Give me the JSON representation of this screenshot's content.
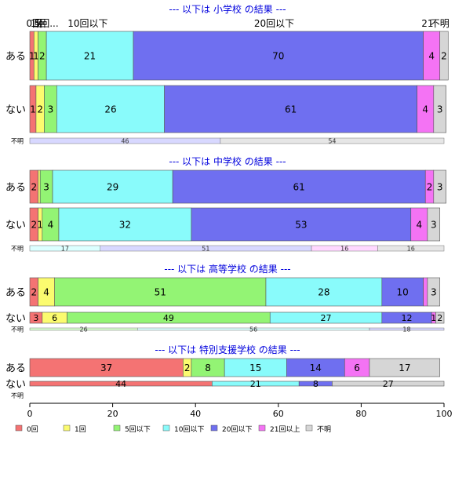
{
  "chart_data": {
    "type": "bar",
    "orientation": "horizontal",
    "stacked": true,
    "xlim": [
      0,
      100
    ],
    "x_ticks": [
      "0",
      "20",
      "40",
      "60",
      "80",
      "100"
    ],
    "categories": [
      "0回",
      "1回",
      "5回以下",
      "10回以下",
      "20回以下",
      "21回以上",
      "不明"
    ],
    "top_labels": [
      {
        "text": "0回",
        "at": 1
      },
      {
        "text": "1回",
        "at": 2
      },
      {
        "text": "5回...",
        "at": 4
      },
      {
        "text": "10回以下",
        "at": 14
      },
      {
        "text": "20回以下",
        "at": 59
      },
      {
        "text": "21",
        "at": 96
      },
      {
        "text": "不明",
        "at": 99
      }
    ],
    "colors": [
      "#f47373",
      "#fbfb6f",
      "#93f474",
      "#89fbfb",
      "#6f6ff0",
      "#f473f4",
      "#d6d6d6"
    ],
    "legend": [
      "0回",
      "1回",
      "5回以下",
      "10回以下",
      "20回以下",
      "21回以上",
      "不明"
    ],
    "legend_position": "bottom",
    "panels": [
      {
        "title": "--- 以下は 小学校 の結果 ---",
        "rows": [
          {
            "label": "ある",
            "values": [
              1,
              1,
              2,
              21,
              70,
              4,
              2
            ],
            "labels": [
              "1",
              "1",
              "2",
              "21",
              "70",
              "4",
              "2"
            ]
          },
          {
            "label": "ない",
            "values": [
              1.5,
              2,
              3,
              26,
              61,
              4,
              3
            ],
            "labels": [
              "1",
              "2",
              "3",
              "26",
              "61",
              "4",
              "3"
            ]
          }
        ],
        "unknown": {
          "label": "不明",
          "values": [
            46,
            54
          ],
          "labels": [
            "46",
            "54"
          ],
          "colors": [
            "#d8d8ff",
            "#e6e6e6"
          ]
        }
      },
      {
        "title": "--- 以下は 中学校 の結果 ---",
        "rows": [
          {
            "label": "ある",
            "values": [
              2,
              0.5,
              3,
              29,
              61,
              2,
              3
            ],
            "labels": [
              "2",
              "",
              "3",
              "29",
              "61",
              "2",
              "3"
            ]
          },
          {
            "label": "ない",
            "values": [
              2,
              1,
              4,
              32,
              53,
              4,
              3
            ],
            "labels": [
              "2",
              "1",
              "4",
              "32",
              "53",
              "4",
              "3"
            ]
          }
        ],
        "unknown": {
          "label": "不明",
          "values": [
            17,
            51,
            16,
            16
          ],
          "labels": [
            "17",
            "51",
            "16",
            "16"
          ],
          "colors": [
            "#dcffff",
            "#d8d8ff",
            "#ffd8ff",
            "#e6e6e6"
          ]
        }
      },
      {
        "title": "--- 以下は 高等学校 の結果 ---",
        "rows": [
          {
            "label": "ある",
            "values": [
              2,
              4,
              51,
              28,
              10,
              1,
              3
            ],
            "labels": [
              "2",
              "4",
              "51",
              "28",
              "10",
              "",
              "3"
            ]
          },
          {
            "label": "ない",
            "values": [
              3,
              6,
              49,
              27,
              12,
              1,
              2
            ],
            "labels": [
              "3",
              "6",
              "49",
              "27",
              "12",
              "1",
              "2"
            ]
          }
        ],
        "unknown": {
          "label": "不明",
          "values": [
            26,
            56,
            18
          ],
          "labels": [
            "26",
            "56",
            "18"
          ],
          "colors": [
            "#d8ffd0",
            "#dcffff",
            "#d8d8ff"
          ]
        }
      },
      {
        "title": "--- 以下は 特別支援学校 の結果 ---",
        "rows": [
          {
            "label": "ある",
            "values": [
              37,
              2,
              8,
              15,
              14,
              6,
              17
            ],
            "labels": [
              "37",
              "2",
              "8",
              "15",
              "14",
              "6",
              "17"
            ]
          },
          {
            "label": "ない",
            "values": [
              44,
              0,
              0,
              21,
              8,
              0,
              27
            ],
            "labels": [
              "44",
              "",
              "",
              "21",
              "8",
              "",
              "27"
            ]
          }
        ],
        "unknown": {
          "label": "不明",
          "values": [],
          "labels": [],
          "colors": []
        }
      }
    ]
  }
}
